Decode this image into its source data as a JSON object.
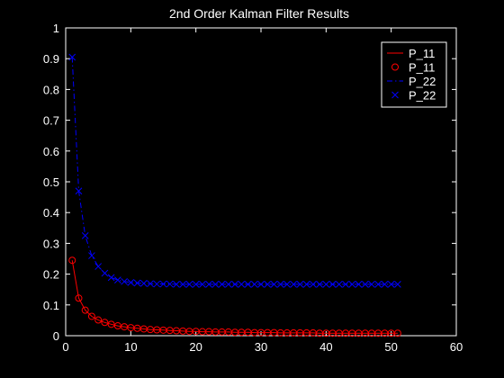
{
  "chart_data": {
    "type": "line",
    "title": "2nd Order Kalman Filter Results",
    "xlim": [
      0,
      60
    ],
    "ylim": [
      0,
      1
    ],
    "xticks": [
      0,
      10,
      20,
      30,
      40,
      50,
      60
    ],
    "yticks": [
      0,
      0.1,
      0.2,
      0.3,
      0.4,
      0.5,
      0.6,
      0.7,
      0.8,
      0.9,
      1
    ],
    "xtick_labels": [
      "0",
      "10",
      "20",
      "30",
      "40",
      "50",
      "60"
    ],
    "ytick_labels": [
      "0",
      "0.1",
      "0.2",
      "0.3",
      "0.4",
      "0.5",
      "0.6",
      "0.7",
      "0.8",
      "0.9",
      "1"
    ],
    "grid": false,
    "legend_position": "top-right",
    "x": [
      1,
      2,
      3,
      4,
      5,
      6,
      7,
      8,
      9,
      10,
      11,
      12,
      13,
      14,
      15,
      16,
      17,
      18,
      19,
      20,
      21,
      22,
      23,
      24,
      25,
      26,
      27,
      28,
      29,
      30,
      31,
      32,
      33,
      34,
      35,
      36,
      37,
      38,
      39,
      40,
      41,
      42,
      43,
      44,
      45,
      46,
      47,
      48,
      49,
      50,
      51
    ],
    "series": [
      {
        "name": "P_11",
        "color": "#ff0000",
        "line_style": "solid",
        "marker": "circle",
        "values": [
          0.245,
          0.122,
          0.083,
          0.063,
          0.051,
          0.043,
          0.037,
          0.032,
          0.029,
          0.026,
          0.024,
          0.022,
          0.02,
          0.019,
          0.018,
          0.017,
          0.016,
          0.015,
          0.014,
          0.014,
          0.013,
          0.013,
          0.012,
          0.012,
          0.012,
          0.011,
          0.011,
          0.011,
          0.01,
          0.01,
          0.01,
          0.01,
          0.009,
          0.009,
          0.009,
          0.009,
          0.009,
          0.009,
          0.008,
          0.008,
          0.008,
          0.008,
          0.008,
          0.008,
          0.008,
          0.008,
          0.008,
          0.008,
          0.008,
          0.008,
          0.008
        ]
      },
      {
        "name": "P_22",
        "color": "#0000ff",
        "line_style": "dashdot",
        "marker": "x",
        "values": [
          0.905,
          0.47,
          0.325,
          0.26,
          0.225,
          0.203,
          0.189,
          0.181,
          0.176,
          0.173,
          0.171,
          0.17,
          0.169,
          0.168,
          0.168,
          0.168,
          0.167,
          0.167,
          0.167,
          0.167,
          0.167,
          0.167,
          0.167,
          0.167,
          0.167,
          0.167,
          0.167,
          0.167,
          0.167,
          0.167,
          0.167,
          0.167,
          0.167,
          0.167,
          0.167,
          0.167,
          0.167,
          0.167,
          0.167,
          0.167,
          0.167,
          0.167,
          0.167,
          0.167,
          0.167,
          0.167,
          0.167,
          0.167,
          0.167,
          0.167,
          0.167
        ]
      }
    ],
    "legend_entries": [
      "P_11",
      "P_11",
      "P_22",
      "P_22"
    ]
  },
  "colors": {
    "background": "#000000",
    "axes": "#ffffff",
    "text": "#ffffff"
  }
}
